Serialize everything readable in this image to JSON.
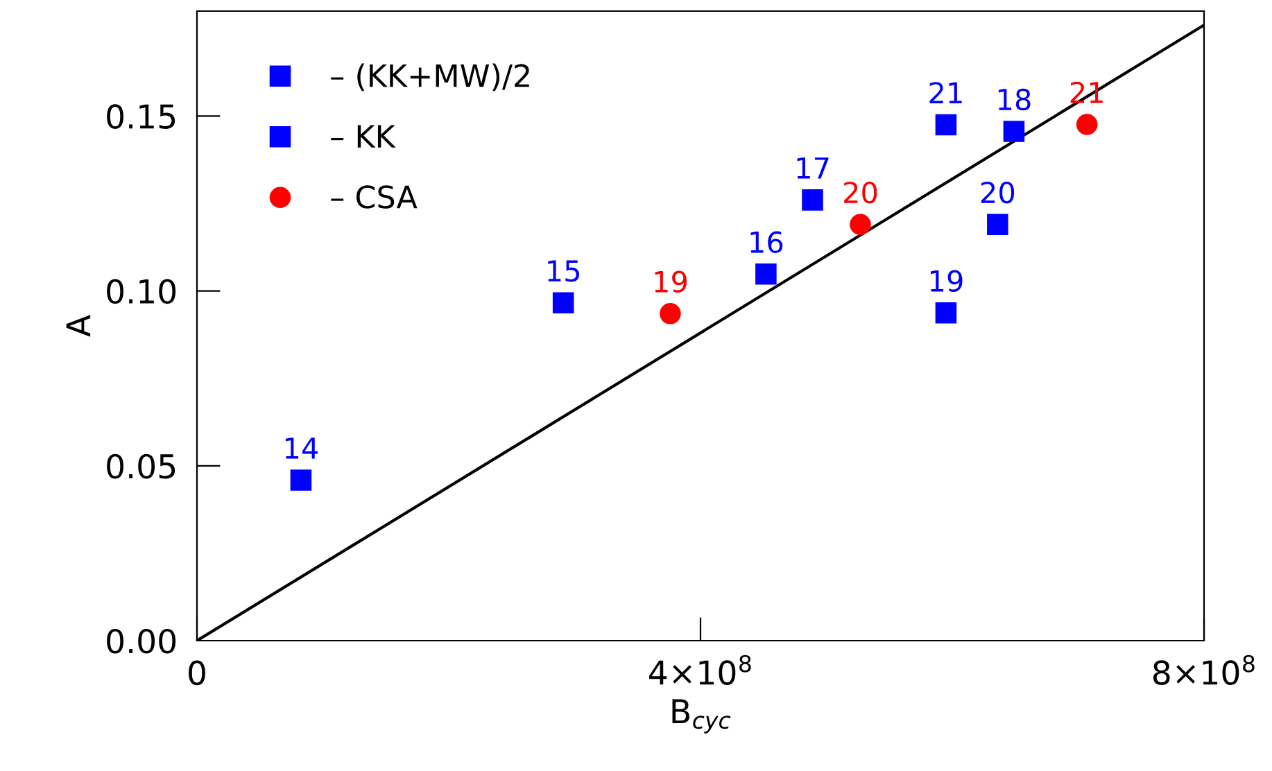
{
  "chart_data": {
    "type": "scatter",
    "xlabel": "B$_{cyc}$",
    "ylabel": "A",
    "xlim": [
      0,
      800000000
    ],
    "ylim": [
      0,
      0.18
    ],
    "xticks": [
      {
        "value": 0,
        "label": "0"
      },
      {
        "value": 400000000,
        "label": "4×10$^{8}$"
      },
      {
        "value": 800000000,
        "label": "8×10$^{8}$"
      }
    ],
    "yticks": [
      {
        "value": 0,
        "label": "0.00"
      },
      {
        "value": 0.05,
        "label": "0.05"
      },
      {
        "value": 0.1,
        "label": "0.10"
      },
      {
        "value": 0.15,
        "label": "0.15"
      }
    ],
    "legend": "top left",
    "series": [
      {
        "name": "– (KK+MW)/2",
        "color": "#0000ff",
        "marker": "square",
        "x": [
          452000000,
          489000000,
          595000000,
          595000000,
          636000000,
          649000000
        ],
        "values": [
          0.1048,
          0.126,
          0.1475,
          0.0937,
          0.119,
          0.1456
        ]
      },
      {
        "name": "– KK",
        "color": "#0000ff",
        "marker": "square",
        "x": [
          82600000,
          291000000
        ],
        "values": [
          0.0459,
          0.0966
        ]
      },
      {
        "name": "– CSA",
        "color": "#ff0000",
        "marker": "circle",
        "x": [
          376000000,
          527000000,
          707000000
        ],
        "values": [
          0.0935,
          0.119,
          0.1476
        ]
      },
      {
        "type": "line",
        "color": "#000000",
        "x": [
          0,
          800000000
        ],
        "values": [
          0,
          0.176
        ]
      }
    ],
    "annotations": [
      {
        "text": "16",
        "x": 452000000,
        "y": 0.1048
      },
      {
        "text": "17",
        "x": 489000000,
        "y": 0.126
      },
      {
        "text": "21",
        "x": 595000000,
        "y": 0.1475
      },
      {
        "text": "19",
        "x": 595000000,
        "y": 0.0937
      },
      {
        "text": "20",
        "x": 636000000,
        "y": 0.119
      },
      {
        "text": "18",
        "x": 649000000,
        "y": 0.1456
      },
      {
        "text": "14",
        "x": 82600000,
        "y": 0.0459
      },
      {
        "text": "15",
        "x": 291000000,
        "y": 0.0966
      },
      {
        "text": "19",
        "x": 376000000,
        "y": 0.0935
      },
      {
        "text": "20",
        "x": 527000000,
        "y": 0.119
      },
      {
        "text": "21",
        "x": 707000000,
        "y": 0.1476
      }
    ]
  }
}
